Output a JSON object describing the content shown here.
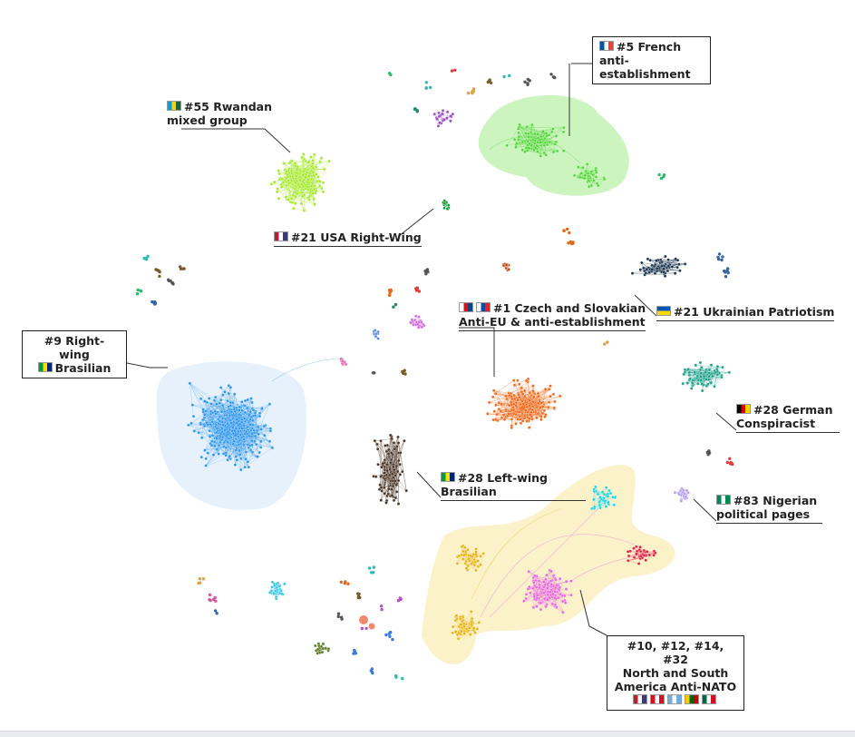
{
  "labels": {
    "french": [
      "#5  French",
      "anti-establishment"
    ],
    "rwandan": [
      "#55 Rwandan",
      "mixed group"
    ],
    "usa": [
      "#21 USA Right-Wing"
    ],
    "ukrainian": [
      "#21 Ukrainian Patriotism"
    ],
    "czech": [
      "#1 Czech and Slovakian",
      "Anti-EU & anti-establishment"
    ],
    "brasil_right": [
      "#9 Right-wing",
      "Brasilian"
    ],
    "german": [
      "#28 German",
      "Conspiracist"
    ],
    "brasil_left": [
      "#28 Left-wing",
      "Brasilian"
    ],
    "nigerian": [
      "#83 Nigerian",
      "political pages"
    ],
    "americas": [
      "#10, #12, #14, #32",
      "North and South",
      "America Anti-NATO"
    ]
  },
  "flags": {
    "french": [
      "#0055a4",
      "#ffffff",
      "#ef4135"
    ],
    "rwandan": [
      "#00a1de",
      "#fad201",
      "#20603d"
    ],
    "usa": [
      "#b22234",
      "#ffffff",
      "#3c3b6e"
    ],
    "ukrainian": [
      "#0057b7",
      "#ffd700"
    ],
    "czech": [
      "#ffffff",
      "#d7141a",
      "#11457e"
    ],
    "slovak": [
      "#ffffff",
      "#0b4ea2",
      "#ee1c25"
    ],
    "brazil": [
      "#009c3b",
      "#ffdf00",
      "#002776"
    ],
    "german": [
      "#000000",
      "#dd0000",
      "#ffce00"
    ],
    "nigerian": [
      "#008751",
      "#ffffff",
      "#008751"
    ],
    "americas": [
      [
        "#b22234",
        "#ffffff",
        "#3c3b6e"
      ],
      [
        "#d91023",
        "#ffffff",
        "#d91023"
      ],
      [
        "#74acdf",
        "#ffffff",
        "#74acdf"
      ],
      [
        "#ffcc00",
        "#006600",
        "#cc0000"
      ],
      [
        "#006847",
        "#ffffff",
        "#ce1126"
      ]
    ]
  },
  "colors": {
    "french": "#52d638",
    "french_hull": "#c7f3b8",
    "rwandan": "#a6e830",
    "usa": "#1a9a3c",
    "ukrainian": "#1c3550",
    "czech": "#f26a1b",
    "brasil_right": "#2e96ee",
    "brasil_hull": "#e3f0fb",
    "german": "#1ea08a",
    "brasil_left": "#4a3424",
    "nigerian": "#b49ef0",
    "americas_hull": "#fbf1c4",
    "americas_gold": "#e6b414",
    "americas_pink": "#e86ad8",
    "americas_cyan": "#22d4dc",
    "americas_red": "#e0223c"
  }
}
